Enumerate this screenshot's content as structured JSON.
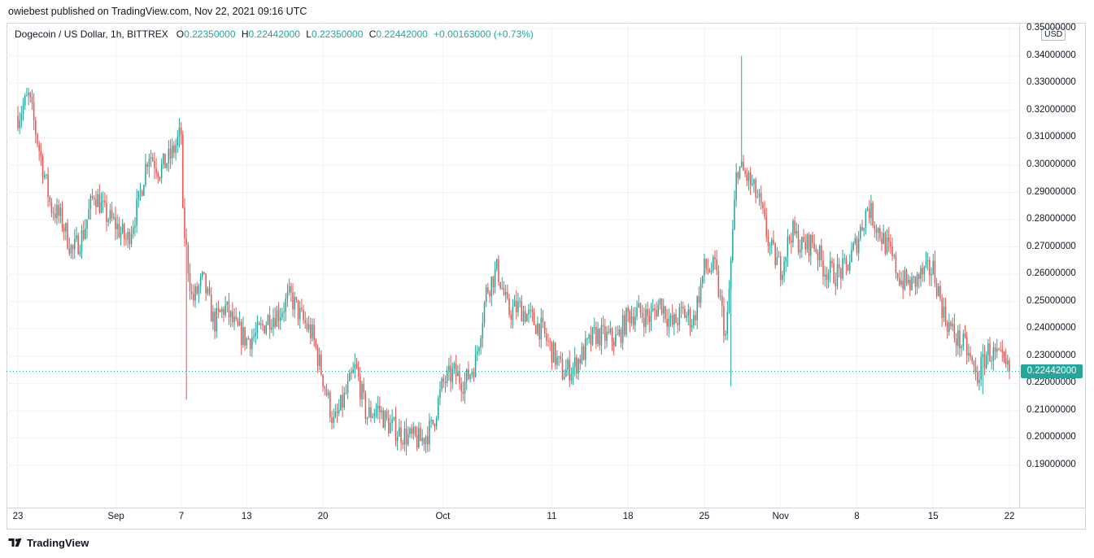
{
  "header": {
    "publisher_line": "owiebest published on TradingView.com, Nov 22, 2021 09:16 UTC"
  },
  "legend": {
    "symbol": "Dogecoin / US Dollar, 1h, BITTREX",
    "o_label": "O",
    "o_value": "0.22350000",
    "h_label": "H",
    "h_value": "0.22442000",
    "l_label": "L",
    "l_value": "0.22350000",
    "c_label": "C",
    "c_value": "0.22442000",
    "change": "+0.00163000 (+0.73%)"
  },
  "price_axis": {
    "currency_button": "USD",
    "last_price_tag": "0.22442000"
  },
  "footer": {
    "brand": "TradingView"
  },
  "colors": {
    "up": "#26a69a",
    "down": "#ef5350",
    "grid": "#f0f3fa"
  },
  "chart_data": {
    "type": "candlestick",
    "x_tick_labels": [
      "23",
      "Sep",
      "7",
      "13",
      "20",
      "Oct",
      "11",
      "18",
      "25",
      "Nov",
      "8",
      "15",
      "22"
    ],
    "y_tick_labels": [
      "0.35000000",
      "0.34000000",
      "0.33000000",
      "0.32000000",
      "0.31000000",
      "0.30000000",
      "0.29000000",
      "0.28000000",
      "0.27000000",
      "0.26000000",
      "0.25000000",
      "0.24000000",
      "0.23000000",
      "0.22000000",
      "0.21000000",
      "0.20000000",
      "0.19000000"
    ],
    "y_ticks": [
      0.35,
      0.34,
      0.33,
      0.32,
      0.31,
      0.3,
      0.29,
      0.28,
      0.27,
      0.26,
      0.25,
      0.24,
      0.23,
      0.22,
      0.21,
      0.2,
      0.19
    ],
    "ylim": [
      0.18,
      0.3514
    ],
    "x_range_days": [
      "2021-08-23",
      "2021-11-22"
    ],
    "last_price": 0.22442,
    "price_path": [
      {
        "t": "2021-08-23",
        "p": 0.318
      },
      {
        "t": "2021-08-24",
        "p": 0.325
      },
      {
        "t": "2021-08-25",
        "p": 0.305
      },
      {
        "t": "2021-08-26",
        "p": 0.285
      },
      {
        "t": "2021-08-27",
        "p": 0.28
      },
      {
        "t": "2021-08-28",
        "p": 0.268
      },
      {
        "t": "2021-08-29",
        "p": 0.275
      },
      {
        "t": "2021-08-30",
        "p": 0.29
      },
      {
        "t": "2021-08-31",
        "p": 0.282
      },
      {
        "t": "2021-09-01",
        "p": 0.278
      },
      {
        "t": "2021-09-02",
        "p": 0.272
      },
      {
        "t": "2021-09-03",
        "p": 0.285
      },
      {
        "t": "2021-09-04",
        "p": 0.305
      },
      {
        "t": "2021-09-05",
        "p": 0.298
      },
      {
        "t": "2021-09-06",
        "p": 0.303
      },
      {
        "t": "2021-09-07",
        "p": 0.312
      },
      {
        "t": "2021-09-07",
        "p": 0.285
      },
      {
        "t": "2021-09-08",
        "p": 0.25
      },
      {
        "t": "2021-09-09",
        "p": 0.258
      },
      {
        "t": "2021-09-10",
        "p": 0.242
      },
      {
        "t": "2021-09-11",
        "p": 0.248
      },
      {
        "t": "2021-09-12",
        "p": 0.24
      },
      {
        "t": "2021-09-13",
        "p": 0.236
      },
      {
        "t": "2021-09-14",
        "p": 0.238
      },
      {
        "t": "2021-09-15",
        "p": 0.244
      },
      {
        "t": "2021-09-16",
        "p": 0.246
      },
      {
        "t": "2021-09-17",
        "p": 0.252
      },
      {
        "t": "2021-09-18",
        "p": 0.244
      },
      {
        "t": "2021-09-19",
        "p": 0.238
      },
      {
        "t": "2021-09-20",
        "p": 0.222
      },
      {
        "t": "2021-09-21",
        "p": 0.205
      },
      {
        "t": "2021-09-22",
        "p": 0.215
      },
      {
        "t": "2021-09-23",
        "p": 0.226
      },
      {
        "t": "2021-09-24",
        "p": 0.208
      },
      {
        "t": "2021-09-25",
        "p": 0.211
      },
      {
        "t": "2021-09-26",
        "p": 0.205
      },
      {
        "t": "2021-09-27",
        "p": 0.202
      },
      {
        "t": "2021-09-28",
        "p": 0.2
      },
      {
        "t": "2021-09-29",
        "p": 0.199
      },
      {
        "t": "2021-09-30",
        "p": 0.204
      },
      {
        "t": "2021-10-01",
        "p": 0.22
      },
      {
        "t": "2021-10-02",
        "p": 0.224
      },
      {
        "t": "2021-10-03",
        "p": 0.22
      },
      {
        "t": "2021-10-04",
        "p": 0.228
      },
      {
        "t": "2021-10-05",
        "p": 0.254
      },
      {
        "t": "2021-10-06",
        "p": 0.262
      },
      {
        "t": "2021-10-07",
        "p": 0.246
      },
      {
        "t": "2021-10-08",
        "p": 0.248
      },
      {
        "t": "2021-10-09",
        "p": 0.244
      },
      {
        "t": "2021-10-10",
        "p": 0.24
      },
      {
        "t": "2021-10-11",
        "p": 0.232
      },
      {
        "t": "2021-10-12",
        "p": 0.224
      },
      {
        "t": "2021-10-13",
        "p": 0.226
      },
      {
        "t": "2021-10-14",
        "p": 0.232
      },
      {
        "t": "2021-10-15",
        "p": 0.238
      },
      {
        "t": "2021-10-16",
        "p": 0.237
      },
      {
        "t": "2021-10-17",
        "p": 0.236
      },
      {
        "t": "2021-10-18",
        "p": 0.245
      },
      {
        "t": "2021-10-19",
        "p": 0.246
      },
      {
        "t": "2021-10-20",
        "p": 0.244
      },
      {
        "t": "2021-10-21",
        "p": 0.25
      },
      {
        "t": "2021-10-22",
        "p": 0.241
      },
      {
        "t": "2021-10-23",
        "p": 0.246
      },
      {
        "t": "2021-10-24",
        "p": 0.243
      },
      {
        "t": "2021-10-25",
        "p": 0.262
      },
      {
        "t": "2021-10-26",
        "p": 0.262
      },
      {
        "t": "2021-10-27",
        "p": 0.236
      },
      {
        "t": "2021-10-28",
        "p": 0.3
      },
      {
        "t": "2021-10-29",
        "p": 0.295
      },
      {
        "t": "2021-10-30",
        "p": 0.287
      },
      {
        "t": "2021-10-31",
        "p": 0.27
      },
      {
        "t": "2021-11-01",
        "p": 0.262
      },
      {
        "t": "2021-11-02",
        "p": 0.276
      },
      {
        "t": "2021-11-03",
        "p": 0.27
      },
      {
        "t": "2021-11-04",
        "p": 0.272
      },
      {
        "t": "2021-11-05",
        "p": 0.262
      },
      {
        "t": "2021-11-06",
        "p": 0.26
      },
      {
        "t": "2021-11-07",
        "p": 0.262
      },
      {
        "t": "2021-11-08",
        "p": 0.272
      },
      {
        "t": "2021-11-09",
        "p": 0.285
      },
      {
        "t": "2021-11-10",
        "p": 0.276
      },
      {
        "t": "2021-11-11",
        "p": 0.268
      },
      {
        "t": "2021-11-12",
        "p": 0.258
      },
      {
        "t": "2021-11-13",
        "p": 0.256
      },
      {
        "t": "2021-11-14",
        "p": 0.26
      },
      {
        "t": "2021-11-15",
        "p": 0.262
      },
      {
        "t": "2021-11-16",
        "p": 0.245
      },
      {
        "t": "2021-11-17",
        "p": 0.237
      },
      {
        "t": "2021-11-18",
        "p": 0.233
      },
      {
        "t": "2021-11-19",
        "p": 0.222
      },
      {
        "t": "2021-11-20",
        "p": 0.232
      },
      {
        "t": "2021-11-21",
        "p": 0.229
      },
      {
        "t": "2021-11-22",
        "p": 0.224
      }
    ],
    "notable_wicks": [
      {
        "t": "2021-09-07",
        "low": 0.214
      },
      {
        "t": "2021-10-28",
        "high": 0.34
      },
      {
        "t": "2021-10-27",
        "low": 0.219
      },
      {
        "t": "2021-11-19",
        "low": 0.216
      }
    ]
  }
}
